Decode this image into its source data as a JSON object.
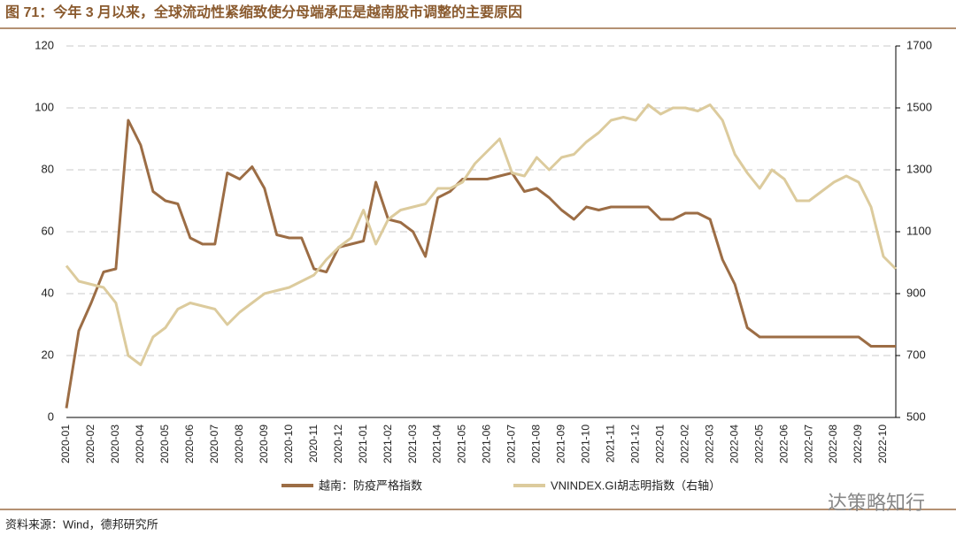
{
  "chart_data": {
    "type": "line",
    "title": "图 71：今年 3 月以来，全球流动性紧缩致使分母端承压是越南股市调整的主要原因",
    "source": "资料来源：Wind，德邦研究所",
    "watermark": "达策略知行",
    "categories": [
      "2020-01",
      null,
      "2020-02",
      null,
      "2020-03",
      null,
      "2020-04",
      null,
      "2020-05",
      null,
      "2020-06",
      null,
      "2020-07",
      null,
      "2020-08",
      null,
      "2020-09",
      null,
      "2020-10",
      null,
      "2020-11",
      null,
      "2020-12",
      null,
      "2021-01",
      null,
      "2021-02",
      null,
      "2021-03",
      null,
      "2021-04",
      null,
      "2021-05",
      null,
      "2021-06",
      null,
      "2021-07",
      null,
      "2021-08",
      null,
      "2021-09",
      null,
      "2021-10",
      null,
      "2021-11",
      null,
      "2021-12",
      null,
      "2022-01",
      null,
      "2022-02",
      null,
      "2022-03",
      null,
      "2022-04",
      null,
      "2022-05",
      null,
      "2022-06",
      null,
      "2022-07",
      null,
      "2022-08",
      null,
      "2022-09",
      null,
      "2022-10",
      null
    ],
    "series": [
      {
        "name": "越南：防疫严格指数",
        "color": "#9c6d45",
        "values": [
          3,
          28,
          37,
          47,
          48,
          96,
          88,
          73,
          70,
          69,
          58,
          56,
          56,
          79,
          77,
          81,
          74,
          59,
          58,
          58,
          48,
          47,
          55,
          56,
          57,
          76,
          64,
          63,
          60,
          52,
          71,
          73,
          77,
          77,
          77,
          78,
          79,
          73,
          74,
          71,
          67,
          64,
          68,
          67,
          68,
          68,
          68,
          68,
          64,
          64,
          66,
          66,
          64,
          51,
          43,
          29,
          26,
          26,
          26,
          26,
          26,
          26,
          26,
          26,
          26,
          23,
          23,
          23
        ]
      },
      {
        "name": "VNINDEX.GI胡志明指数（右轴）",
        "color": "#dccb9d",
        "axis": "y2",
        "values": [
          990,
          940,
          930,
          920,
          870,
          700,
          670,
          760,
          790,
          850,
          870,
          860,
          850,
          800,
          840,
          870,
          900,
          910,
          920,
          940,
          960,
          1010,
          1050,
          1080,
          1170,
          1060,
          1140,
          1170,
          1180,
          1190,
          1240,
          1240,
          1260,
          1320,
          1360,
          1400,
          1290,
          1280,
          1340,
          1300,
          1340,
          1350,
          1390,
          1420,
          1460,
          1470,
          1460,
          1510,
          1480,
          1500,
          1500,
          1490,
          1510,
          1460,
          1350,
          1290,
          1240,
          1300,
          1270,
          1200,
          1200,
          1230,
          1260,
          1280,
          1260,
          1180,
          1020,
          980
        ]
      }
    ],
    "ylim": [
      0,
      120
    ],
    "yticks": [
      0,
      20,
      40,
      60,
      80,
      100,
      120
    ],
    "y2lim": [
      500,
      1700
    ],
    "y2ticks": [
      500,
      700,
      900,
      1100,
      1300,
      1500,
      1700
    ],
    "grid": true
  }
}
